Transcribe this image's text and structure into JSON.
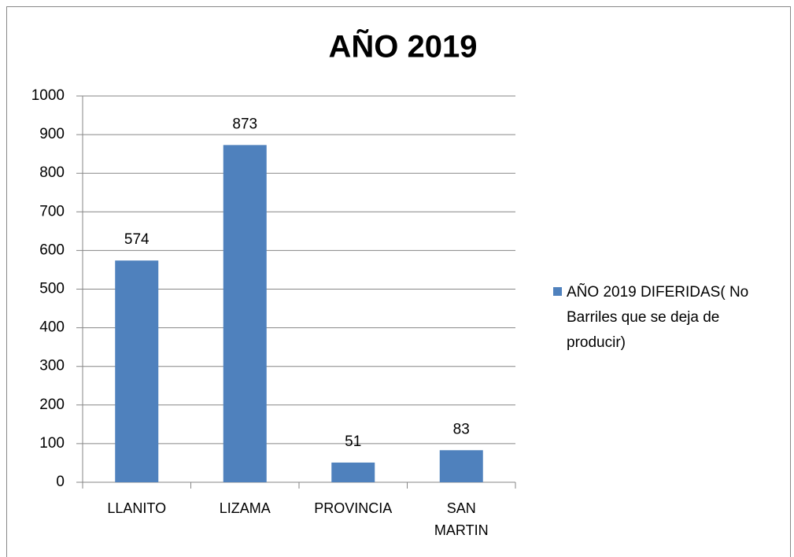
{
  "chart_data": {
    "type": "bar",
    "title": "AÑO 2019",
    "categories": [
      "LLANITO",
      "LIZAMA",
      "PROVINCIA",
      "SAN MARTIN"
    ],
    "series": [
      {
        "name": "AÑO 2019 DIFERIDAS( No Barriles que se deja de producir)",
        "color": "#4f81bd",
        "values": [
          574,
          873,
          51,
          83
        ]
      }
    ],
    "ylim": [
      0,
      1000
    ],
    "yticks": [
      0,
      100,
      200,
      300,
      400,
      500,
      600,
      700,
      800,
      900,
      1000
    ],
    "grid": true,
    "legend": "right"
  }
}
